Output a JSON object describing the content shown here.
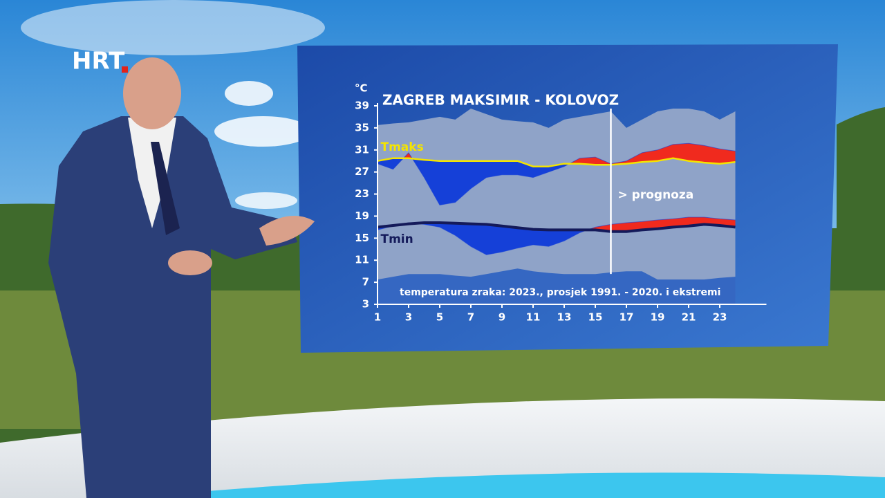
{
  "logo": "HRT",
  "chart_data": {
    "type": "line",
    "title": "ZAGREB MAKSIMIR - KOLOVOZ",
    "y_unit": "°C",
    "caption": "temperatura zraka: 2023., prosjek 1991. - 2020. i ekstremi",
    "forecast_x": 16,
    "forecast_label": "> prognoza",
    "x": [
      1,
      2,
      3,
      4,
      5,
      6,
      7,
      8,
      9,
      10,
      11,
      12,
      13,
      14,
      15,
      16,
      17,
      18,
      19,
      20,
      21,
      22,
      23,
      24
    ],
    "xlim": [
      1,
      26
    ],
    "xticks": [
      1,
      3,
      5,
      7,
      9,
      11,
      13,
      15,
      17,
      19,
      21,
      23
    ],
    "ylim": [
      3,
      39
    ],
    "yticks": [
      3,
      7,
      11,
      15,
      19,
      23,
      27,
      31,
      35,
      39
    ],
    "series": [
      {
        "name": "Tmaks",
        "color": "#f4e400",
        "values": [
          29,
          29.5,
          29.5,
          29.2,
          29,
          29,
          29,
          29,
          29,
          29,
          28,
          28,
          28.5,
          28.5,
          28.3,
          28.3,
          28.5,
          28.8,
          29,
          29.5,
          29,
          28.7,
          28.5,
          28.8
        ]
      },
      {
        "name": "Tmin",
        "color": "#141a5a",
        "values": [
          17,
          17.3,
          17.6,
          17.8,
          17.8,
          17.7,
          17.6,
          17.5,
          17.2,
          16.9,
          16.6,
          16.5,
          16.5,
          16.5,
          16.5,
          16.2,
          16.2,
          16.5,
          16.7,
          17,
          17.2,
          17.5,
          17.3,
          17
        ]
      }
    ],
    "observed": [
      {
        "values": [
          28.5,
          27.5,
          30.5,
          26,
          21,
          21.5,
          24,
          26,
          26.5,
          26.5,
          26,
          27,
          28,
          29.5,
          29.7,
          28.5,
          29,
          30.5,
          31,
          32,
          32.2,
          31.8,
          31.2,
          30.8
        ]
      },
      {
        "values": [
          16.5,
          17.2,
          17.8,
          17.5,
          17,
          15.5,
          13.5,
          12,
          12.5,
          13.2,
          13.8,
          13.5,
          14.5,
          16,
          17,
          17.5,
          17.8,
          18,
          18.3,
          18.5,
          18.8,
          18.8,
          18.5,
          18.3
        ]
      }
    ],
    "anomaly_colors": {
      "above": "#f02a1e",
      "below": "#1540d8"
    },
    "records": {
      "max": [
        35.5,
        35.8,
        36,
        36.5,
        37,
        36.5,
        38.5,
        37.5,
        36.5,
        36.2,
        36,
        35,
        36.5,
        37,
        37.5,
        38,
        35,
        36.5,
        38,
        38.5,
        38.5,
        38,
        36.5,
        38
      ],
      "min": [
        7.5,
        8,
        8.5,
        8.5,
        8.5,
        8.2,
        8,
        8.5,
        9,
        9.5,
        9,
        8.7,
        8.5,
        8.5,
        8.5,
        8.8,
        9,
        9,
        7.5,
        7.5,
        7.5,
        7.5,
        7.8,
        8
      ],
      "colors": [
        "#8fa3c8",
        "#3567c2"
      ]
    }
  }
}
